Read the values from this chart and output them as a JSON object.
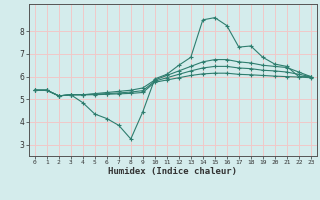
{
  "xlabel": "Humidex (Indice chaleur)",
  "bg_color": "#d4ecec",
  "grid_color": "#f0c8c8",
  "line_color": "#2e7d6e",
  "xlim": [
    -0.5,
    23.5
  ],
  "ylim": [
    2.5,
    9.2
  ],
  "xticks": [
    0,
    1,
    2,
    3,
    4,
    5,
    6,
    7,
    8,
    9,
    10,
    11,
    12,
    13,
    14,
    15,
    16,
    17,
    18,
    19,
    20,
    21,
    22,
    23
  ],
  "yticks": [
    3,
    4,
    5,
    6,
    7,
    8
  ],
  "series": {
    "line1_x": [
      0,
      1,
      2,
      3,
      4,
      5,
      6,
      7,
      8,
      9,
      10,
      11,
      12,
      13,
      14,
      15,
      16,
      17,
      18,
      19,
      20,
      21,
      22,
      23
    ],
    "line1_y": [
      5.4,
      5.4,
      5.15,
      5.2,
      4.85,
      4.35,
      4.15,
      3.85,
      3.25,
      4.45,
      5.9,
      6.1,
      6.5,
      6.85,
      8.5,
      8.6,
      8.25,
      7.3,
      7.35,
      6.85,
      6.55,
      6.45,
      6.0,
      6.0
    ],
    "line2_x": [
      0,
      1,
      2,
      3,
      4,
      5,
      6,
      7,
      8,
      9,
      10,
      11,
      12,
      13,
      14,
      15,
      16,
      17,
      18,
      19,
      20,
      21,
      22,
      23
    ],
    "line2_y": [
      5.4,
      5.4,
      5.15,
      5.2,
      5.2,
      5.25,
      5.3,
      5.35,
      5.4,
      5.5,
      5.85,
      6.05,
      6.25,
      6.45,
      6.65,
      6.75,
      6.75,
      6.65,
      6.6,
      6.5,
      6.45,
      6.4,
      6.2,
      6.0
    ],
    "line3_x": [
      0,
      1,
      2,
      3,
      4,
      5,
      6,
      7,
      8,
      9,
      10,
      11,
      12,
      13,
      14,
      15,
      16,
      17,
      18,
      19,
      20,
      21,
      22,
      23
    ],
    "line3_y": [
      5.4,
      5.4,
      5.15,
      5.2,
      5.2,
      5.22,
      5.25,
      5.28,
      5.32,
      5.38,
      5.8,
      5.95,
      6.1,
      6.25,
      6.38,
      6.45,
      6.45,
      6.38,
      6.35,
      6.28,
      6.25,
      6.2,
      6.1,
      6.0
    ],
    "line4_x": [
      0,
      1,
      2,
      3,
      4,
      5,
      6,
      7,
      8,
      9,
      10,
      11,
      12,
      13,
      14,
      15,
      16,
      17,
      18,
      19,
      20,
      21,
      22,
      23
    ],
    "line4_y": [
      5.4,
      5.4,
      5.15,
      5.2,
      5.2,
      5.2,
      5.22,
      5.24,
      5.26,
      5.3,
      5.75,
      5.85,
      5.95,
      6.05,
      6.12,
      6.15,
      6.15,
      6.1,
      6.08,
      6.05,
      6.02,
      6.0,
      5.98,
      5.95
    ]
  }
}
